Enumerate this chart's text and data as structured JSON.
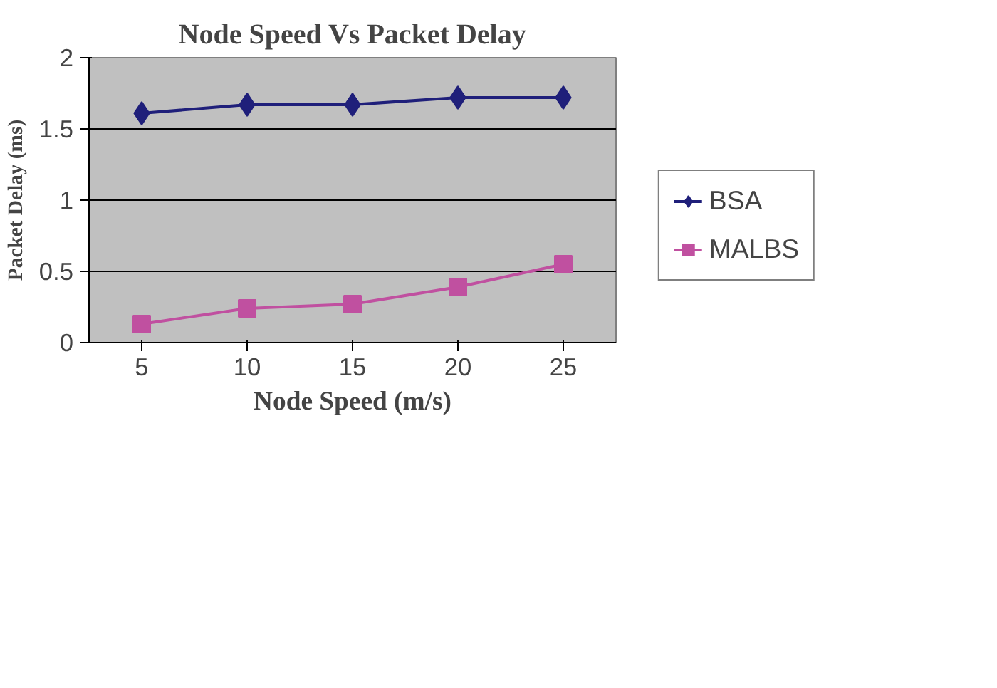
{
  "chart_data": {
    "type": "line",
    "title": "Node Speed Vs Packet Delay",
    "xlabel": "Node Speed (m/s)",
    "ylabel": "Packet Delay (ms)",
    "categories": [
      "5",
      "10",
      "15",
      "20",
      "25"
    ],
    "series": [
      {
        "name": "BSA",
        "color": "#1f1f7a",
        "marker": "diamond",
        "values": [
          1.61,
          1.67,
          1.67,
          1.72,
          1.72
        ]
      },
      {
        "name": "MALBS",
        "color": "#c050a0",
        "marker": "square",
        "values": [
          0.13,
          0.24,
          0.27,
          0.39,
          0.55
        ]
      }
    ],
    "ylim": [
      0,
      2
    ],
    "yticks": [
      0,
      0.5,
      1,
      1.5,
      2
    ],
    "grid": "y",
    "legend": "right",
    "line_style": "solid"
  }
}
